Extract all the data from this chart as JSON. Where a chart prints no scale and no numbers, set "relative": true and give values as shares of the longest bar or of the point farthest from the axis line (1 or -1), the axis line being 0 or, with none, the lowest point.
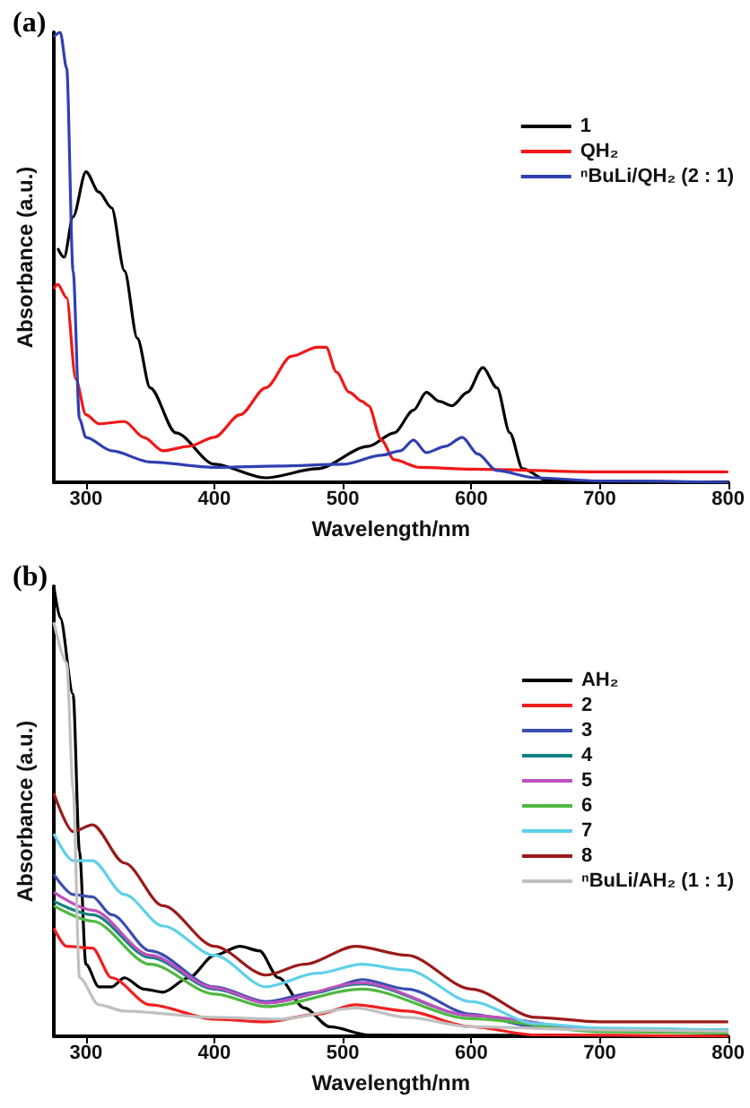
{
  "chart_data": [
    {
      "type": "line",
      "title": "(a)",
      "xlabel": "Wavelength/nm",
      "ylabel": "Absorbance (a.u.)",
      "relative": true,
      "xlim": [
        275,
        800
      ],
      "xticks": [
        300,
        400,
        500,
        600,
        700,
        800
      ],
      "grid": false,
      "legend": "top right",
      "marker": "none",
      "line_style": "solid",
      "series": [
        {
          "name": "1",
          "color": "#000000",
          "x": [
            278,
            283,
            290,
            300,
            310,
            320,
            330,
            340,
            350,
            370,
            400,
            440,
            480,
            520,
            540,
            555,
            565,
            575,
            585,
            597,
            609,
            620,
            630,
            640,
            660,
            800
          ],
          "values": [
            0.52,
            0.5,
            0.59,
            0.69,
            0.645,
            0.61,
            0.47,
            0.32,
            0.21,
            0.11,
            0.04,
            0.01,
            0.03,
            0.08,
            0.11,
            0.16,
            0.2,
            0.18,
            0.17,
            0.2,
            0.255,
            0.21,
            0.11,
            0.03,
            0.003,
            0
          ]
        },
        {
          "name": "QH₂",
          "color": "#f01818",
          "x": [
            275,
            278,
            285,
            292,
            300,
            310,
            330,
            345,
            360,
            380,
            400,
            420,
            440,
            460,
            480,
            487,
            495,
            505,
            515,
            520,
            530,
            540,
            560,
            600,
            700,
            800
          ],
          "values": [
            0.43,
            0.44,
            0.41,
            0.23,
            0.15,
            0.13,
            0.135,
            0.1,
            0.07,
            0.08,
            0.1,
            0.15,
            0.21,
            0.28,
            0.3,
            0.3,
            0.245,
            0.2,
            0.18,
            0.17,
            0.094,
            0.05,
            0.033,
            0.029,
            0.023,
            0.023
          ]
        },
        {
          "name": "ⁿBuLi/QH₂ (2 : 1)",
          "color": "#3040b0",
          "x": [
            275,
            280,
            285,
            290,
            295,
            300,
            320,
            350,
            400,
            450,
            500,
            530,
            545,
            555,
            565,
            580,
            593,
            605,
            620,
            650,
            700,
            800
          ],
          "values": [
            0.99,
            1,
            0.92,
            0.47,
            0.14,
            0.1,
            0.07,
            0.045,
            0.033,
            0.036,
            0.04,
            0.06,
            0.07,
            0.094,
            0.066,
            0.08,
            0.1,
            0.063,
            0.026,
            0.01,
            0.003,
            0
          ]
        }
      ]
    },
    {
      "type": "line",
      "title": "(b)",
      "xlabel": "Wavelength/nm",
      "ylabel": "Absorbance (a.u.)",
      "relative": true,
      "xlim": [
        275,
        800
      ],
      "xticks": [
        300,
        400,
        500,
        600,
        700,
        800
      ],
      "grid": false,
      "legend": "top right",
      "marker": "none",
      "line_style": "solid",
      "series": [
        {
          "name": "AH₂",
          "color": "#000000",
          "x": [
            275,
            280,
            290,
            295,
            300,
            310,
            320,
            330,
            345,
            360,
            380,
            400,
            420,
            435,
            450,
            470,
            490,
            520,
            800
          ],
          "values": [
            1,
            0.93,
            0.76,
            0.41,
            0.16,
            0.11,
            0.11,
            0.13,
            0.105,
            0.098,
            0.13,
            0.18,
            0.2,
            0.19,
            0.13,
            0.063,
            0.021,
            0.003,
            0
          ]
        },
        {
          "name": "2",
          "color": "#f02020",
          "x": [
            275,
            285,
            305,
            320,
            350,
            400,
            440,
            480,
            510,
            550,
            600,
            650,
            800
          ],
          "values": [
            0.24,
            0.2,
            0.196,
            0.13,
            0.07,
            0.038,
            0.032,
            0.049,
            0.07,
            0.056,
            0.021,
            0.003,
            0
          ]
        },
        {
          "name": "3",
          "color": "#3a4db0",
          "x": [
            275,
            290,
            305,
            320,
            350,
            400,
            440,
            480,
            515,
            550,
            600,
            650,
            700,
            800
          ],
          "values": [
            0.36,
            0.315,
            0.31,
            0.27,
            0.19,
            0.11,
            0.077,
            0.098,
            0.126,
            0.105,
            0.049,
            0.021,
            0.014,
            0.014
          ]
        },
        {
          "name": "4",
          "color": "#138080",
          "x": [
            275,
            305,
            350,
            400,
            440,
            515,
            600,
            700,
            800
          ],
          "values": [
            0.3,
            0.27,
            0.175,
            0.105,
            0.074,
            0.116,
            0.046,
            0.014,
            0.011
          ]
        },
        {
          "name": "5",
          "color": "#c050c0",
          "x": [
            275,
            305,
            350,
            400,
            440,
            515,
            600,
            700,
            800
          ],
          "values": [
            0.32,
            0.28,
            0.18,
            0.108,
            0.074,
            0.119,
            0.046,
            0.014,
            0.011
          ]
        },
        {
          "name": "6",
          "color": "#50b840",
          "x": [
            275,
            305,
            350,
            400,
            440,
            515,
            600,
            700,
            800
          ],
          "values": [
            0.29,
            0.256,
            0.16,
            0.094,
            0.066,
            0.105,
            0.039,
            0.01,
            0.007
          ]
        },
        {
          "name": "7",
          "color": "#60d0e8",
          "x": [
            275,
            290,
            305,
            330,
            360,
            400,
            440,
            480,
            515,
            550,
            600,
            650,
            700,
            800
          ],
          "values": [
            0.45,
            0.39,
            0.39,
            0.315,
            0.245,
            0.18,
            0.11,
            0.14,
            0.16,
            0.147,
            0.077,
            0.028,
            0.018,
            0.014
          ]
        },
        {
          "name": "8",
          "color": "#9b1a1a",
          "x": [
            275,
            290,
            305,
            330,
            360,
            400,
            440,
            470,
            510,
            550,
            600,
            650,
            700,
            800
          ],
          "values": [
            0.54,
            0.455,
            0.47,
            0.385,
            0.29,
            0.2,
            0.136,
            0.16,
            0.2,
            0.18,
            0.105,
            0.042,
            0.032,
            0.032
          ]
        },
        {
          "name": "ⁿBuLi/AH₂ (1 : 1)",
          "color": "#c0c0c0",
          "x": [
            275,
            285,
            290,
            295,
            310,
            330,
            400,
            450,
            510,
            550,
            600,
            700,
            800
          ],
          "values": [
            0.92,
            0.83,
            0.55,
            0.13,
            0.07,
            0.056,
            0.042,
            0.038,
            0.063,
            0.042,
            0.021,
            0.014,
            0.011
          ]
        }
      ]
    }
  ]
}
